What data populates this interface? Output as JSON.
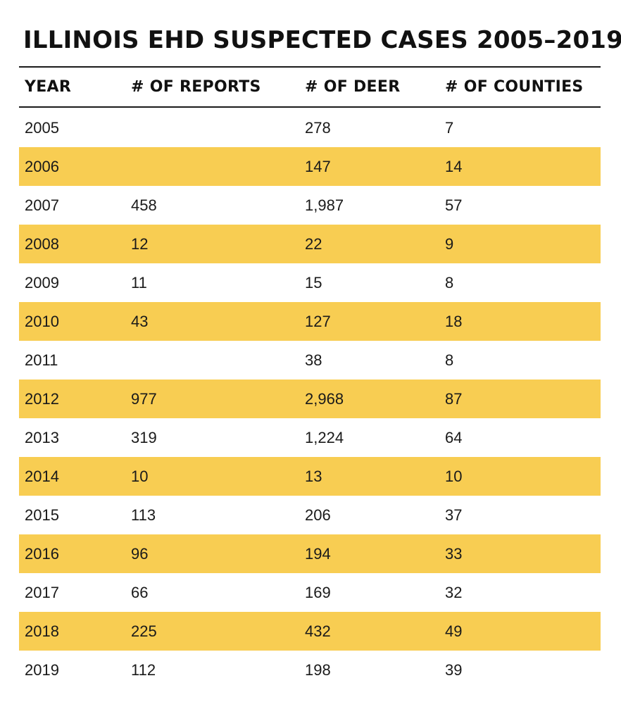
{
  "chart_data": {
    "type": "table",
    "title": "ILLINOIS EHD SUSPECTED CASES 2005–2019",
    "columns": [
      "YEAR",
      "# OF REPORTS",
      "# OF DEER",
      "# OF COUNTIES"
    ],
    "rows": [
      {
        "year": "2005",
        "reports": "",
        "deer": "278",
        "counties": "7"
      },
      {
        "year": "2006",
        "reports": "",
        "deer": "147",
        "counties": "14"
      },
      {
        "year": "2007",
        "reports": "458",
        "deer": "1,987",
        "counties": "57"
      },
      {
        "year": "2008",
        "reports": "12",
        "deer": "22",
        "counties": "9"
      },
      {
        "year": "2009",
        "reports": "11",
        "deer": "15",
        "counties": "8"
      },
      {
        "year": "2010",
        "reports": "43",
        "deer": "127",
        "counties": "18"
      },
      {
        "year": "2011",
        "reports": "",
        "deer": "38",
        "counties": "8"
      },
      {
        "year": "2012",
        "reports": "977",
        "deer": "2,968",
        "counties": "87"
      },
      {
        "year": "2013",
        "reports": "319",
        "deer": "1,224",
        "counties": "64"
      },
      {
        "year": "2014",
        "reports": "10",
        "deer": "13",
        "counties": "10"
      },
      {
        "year": "2015",
        "reports": "113",
        "deer": "206",
        "counties": "37"
      },
      {
        "year": "2016",
        "reports": "96",
        "deer": "194",
        "counties": "33"
      },
      {
        "year": "2017",
        "reports": "66",
        "deer": "169",
        "counties": "32"
      },
      {
        "year": "2018",
        "reports": "225",
        "deer": "432",
        "counties": "49"
      },
      {
        "year": "2019",
        "reports": "112",
        "deer": "198",
        "counties": "39"
      }
    ]
  },
  "colors": {
    "shaded_row": "#f8cd52",
    "text": "#141414",
    "rule": "#1a1a1a"
  }
}
